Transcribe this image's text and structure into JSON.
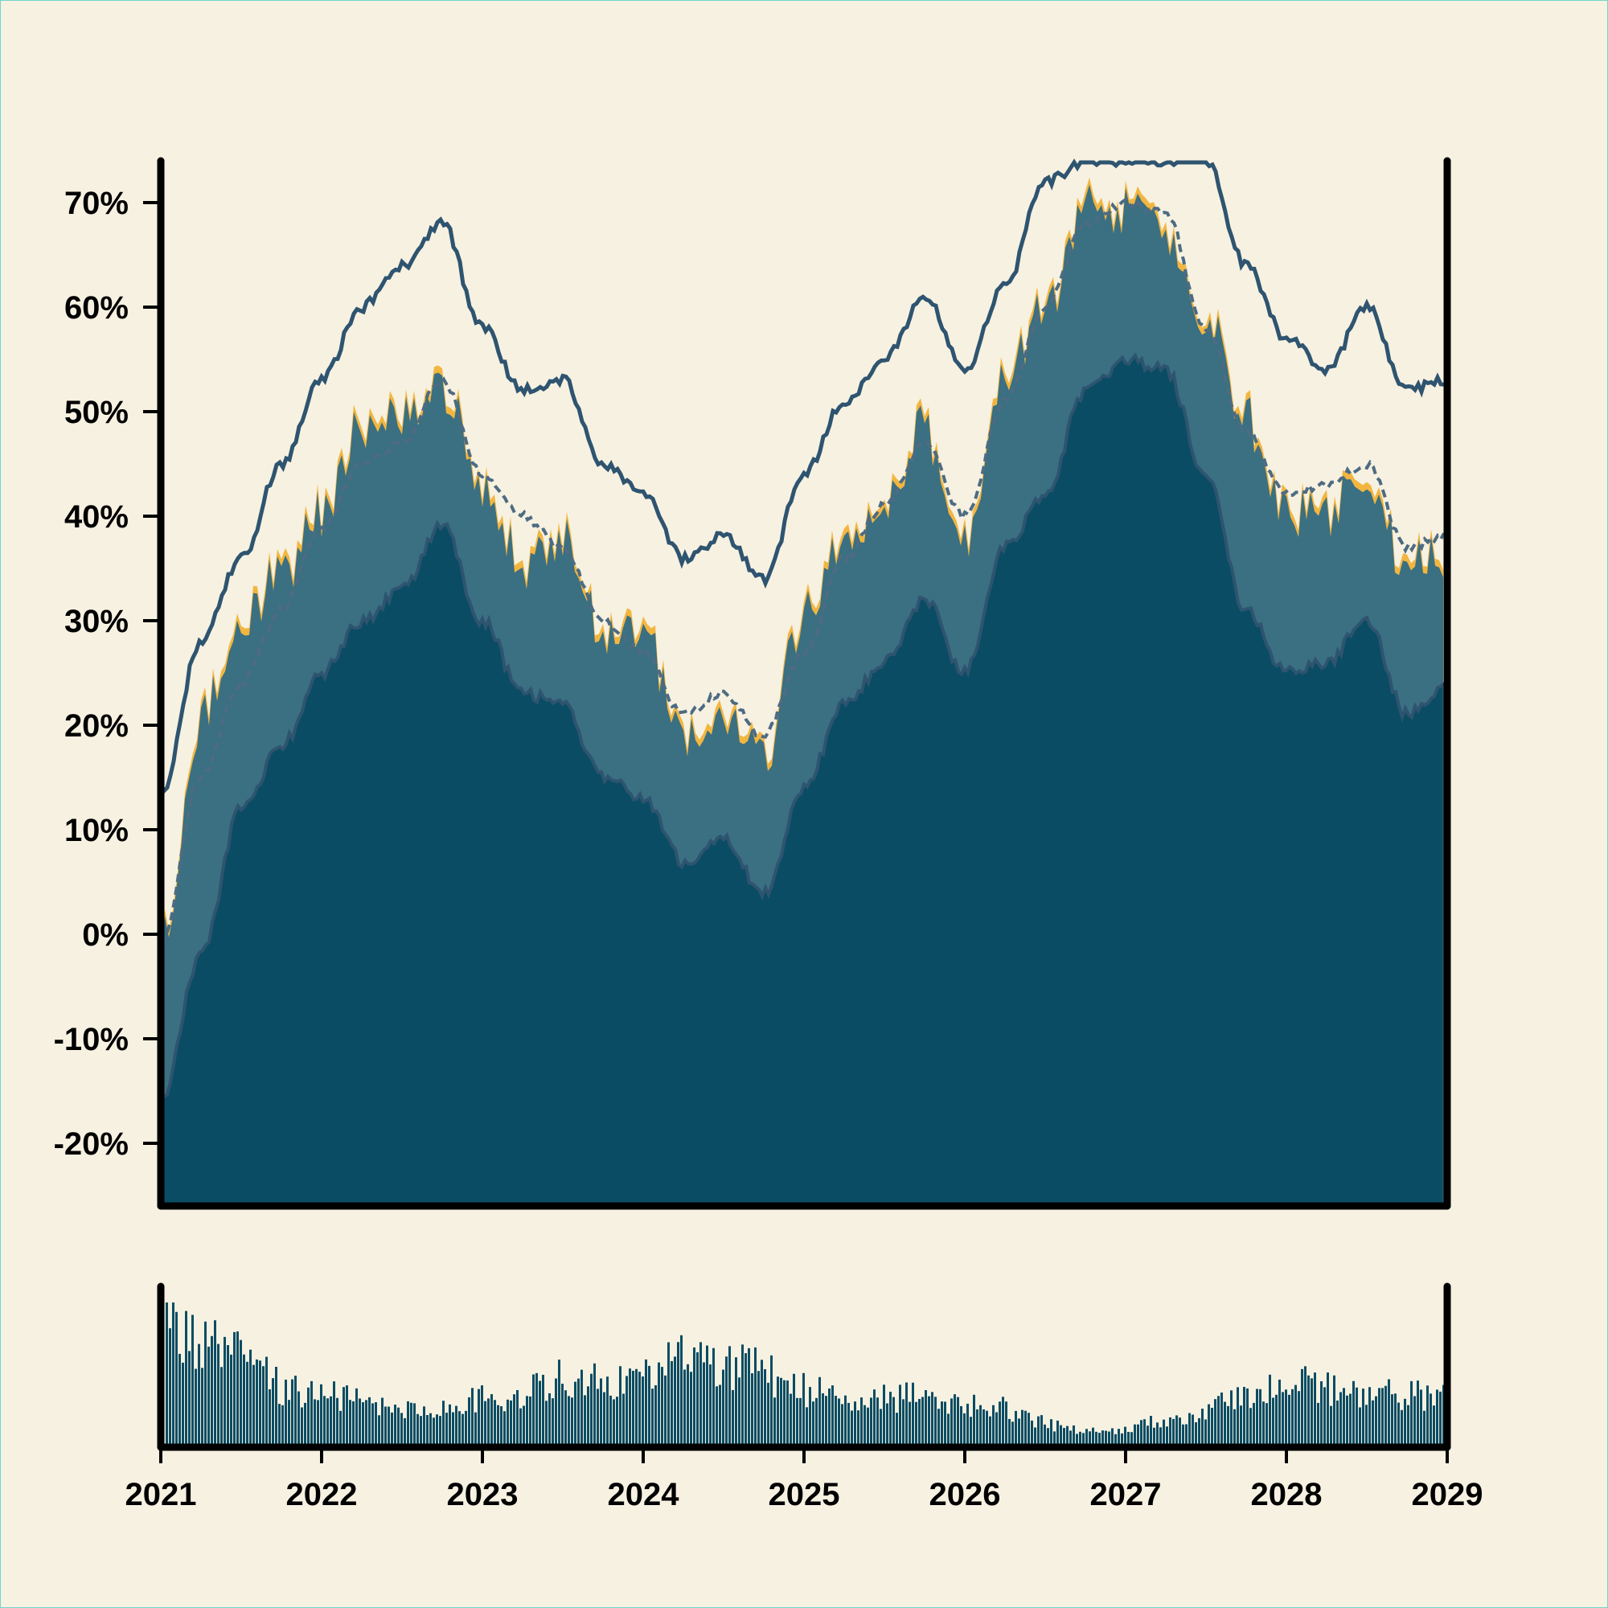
{
  "colors": {
    "background": "#f7f1e1",
    "area_dark": "#0a4c63",
    "area_mid": "#3b6f82",
    "price_fill": "#f2b640",
    "line": "#2e5470",
    "volume": "#0a4c63",
    "axis": "#000000"
  },
  "chart_data": [
    {
      "type": "area",
      "x_kind": "date",
      "xlim": [
        "2021-01",
        "2029-01"
      ],
      "ylim": [
        -26,
        74
      ],
      "grid": false,
      "x_ticks": [
        "2021",
        "2022",
        "2023",
        "2024",
        "2025",
        "2026",
        "2027",
        "2028",
        "2029"
      ],
      "y_ticks": [
        "-20%",
        "-10%",
        "0%",
        "10%",
        "20%",
        "30%",
        "40%",
        "50%",
        "60%",
        "70%"
      ],
      "y_tick_values": [
        -20,
        -10,
        0,
        10,
        20,
        30,
        40,
        50,
        60,
        70
      ],
      "y_unit": "%",
      "x": [
        "2021-01",
        "2021-04",
        "2021-07",
        "2021-10",
        "2022-01",
        "2022-04",
        "2022-07",
        "2022-10",
        "2023-01",
        "2023-04",
        "2023-07",
        "2023-10",
        "2024-01",
        "2024-04",
        "2024-07",
        "2024-10",
        "2025-01",
        "2025-04",
        "2025-07",
        "2025-10",
        "2026-01",
        "2026-04",
        "2026-07",
        "2026-10",
        "2027-01",
        "2027-04",
        "2027-07",
        "2027-10",
        "2028-01",
        "2028-04",
        "2028-07",
        "2028-10",
        "2029-01"
      ],
      "series": [
        {
          "role": "upper_band",
          "style": "solid-line",
          "values": [
            13,
            28,
            36,
            45,
            53,
            60,
            64,
            68,
            58,
            52,
            53,
            45,
            42,
            36,
            38,
            34,
            44,
            51,
            55,
            61,
            54,
            62,
            72,
            74,
            74,
            74,
            74,
            64,
            57,
            54,
            60,
            52,
            53
          ]
        },
        {
          "role": "price",
          "style": "area-fill",
          "values": [
            0,
            21,
            31,
            35,
            41,
            49,
            50,
            53,
            44,
            36,
            39,
            30,
            29,
            20,
            22,
            18,
            31,
            38,
            41,
            49,
            38,
            55,
            60,
            70,
            70,
            68,
            60,
            50,
            41,
            41,
            44,
            36,
            37
          ]
        },
        {
          "role": "moving_average",
          "style": "dashed-line",
          "values": [
            -1,
            15,
            24,
            31,
            39,
            45,
            47,
            53,
            44,
            40,
            37,
            30,
            27,
            21,
            23,
            19,
            27,
            36,
            41,
            47,
            40,
            51,
            60,
            68,
            70,
            69,
            58,
            48,
            42,
            43,
            45,
            37,
            38
          ]
        },
        {
          "role": "lower_band",
          "style": "area-fill",
          "values": [
            -16,
            -2,
            12,
            18,
            25,
            30,
            33,
            39,
            30,
            23,
            22,
            15,
            13,
            7,
            9,
            4,
            14,
            22,
            26,
            32,
            25,
            37,
            42,
            52,
            55,
            54,
            44,
            31,
            25,
            26,
            30,
            21,
            24
          ]
        }
      ]
    },
    {
      "type": "bar",
      "x_kind": "date",
      "xlim": [
        "2021-01",
        "2029-01"
      ],
      "x_ticks": [
        "2021",
        "2022",
        "2023",
        "2024",
        "2025",
        "2026",
        "2027",
        "2028",
        "2029"
      ],
      "y_ticks": [],
      "x": [
        "2021-01",
        "2021-04",
        "2021-07",
        "2021-10",
        "2022-01",
        "2022-04",
        "2022-07",
        "2022-10",
        "2023-01",
        "2023-04",
        "2023-07",
        "2023-10",
        "2024-01",
        "2024-04",
        "2024-07",
        "2024-10",
        "2025-01",
        "2025-04",
        "2025-07",
        "2025-10",
        "2026-01",
        "2026-04",
        "2026-07",
        "2026-10",
        "2027-01",
        "2027-04",
        "2027-07",
        "2027-10",
        "2028-01",
        "2028-04",
        "2028-07",
        "2028-10",
        "2029-01"
      ],
      "values": [
        1.0,
        0.8,
        0.7,
        0.45,
        0.43,
        0.35,
        0.3,
        0.3,
        0.38,
        0.42,
        0.55,
        0.5,
        0.55,
        0.72,
        0.65,
        0.6,
        0.45,
        0.42,
        0.38,
        0.4,
        0.35,
        0.3,
        0.18,
        0.12,
        0.15,
        0.22,
        0.3,
        0.38,
        0.5,
        0.48,
        0.4,
        0.42,
        0.38
      ]
    }
  ]
}
